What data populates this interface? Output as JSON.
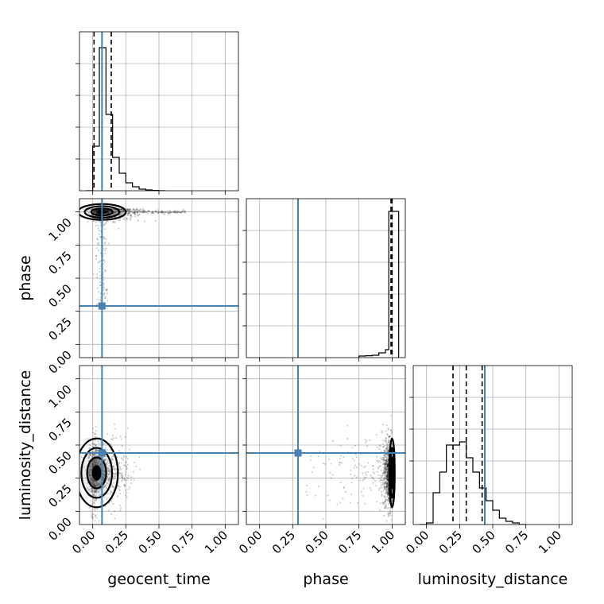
{
  "chart_data": {
    "type": "corner",
    "parameters": [
      {
        "name": "geocent_time",
        "range": [
          -0.1,
          1.1
        ],
        "ticks": [
          "0.00",
          "0.25",
          "0.50",
          "0.75",
          "1.00"
        ]
      },
      {
        "name": "phase",
        "range": [
          -0.1,
          1.1
        ],
        "ticks": [
          "0.00",
          "0.25",
          "0.50",
          "0.75",
          "1.00"
        ]
      },
      {
        "name": "luminosity_distance",
        "range": [
          -0.1,
          1.1
        ],
        "ticks": [
          "0.00",
          "0.25",
          "0.50",
          "0.75",
          "1.00"
        ]
      }
    ],
    "truths": {
      "geocent_time": 0.07,
      "phase": 0.29,
      "luminosity_distance": 0.44
    },
    "truth_color": "#4682b4",
    "histograms": [
      {
        "parameter": "geocent_time",
        "bin_edges": [
          -0.05,
          0.0,
          0.05,
          0.1,
          0.15,
          0.2,
          0.25,
          0.3,
          0.35,
          0.4,
          0.45,
          0.5,
          0.55
        ],
        "counts": [
          0.0,
          0.28,
          0.9,
          0.48,
          0.21,
          0.11,
          0.05,
          0.025,
          0.01,
          0.005,
          0.002,
          0.0
        ],
        "quantiles": [
          0.01,
          0.07,
          0.14
        ]
      },
      {
        "parameter": "phase",
        "bin_edges": [
          0.75,
          0.8,
          0.85,
          0.9,
          0.95,
          0.975,
          1.0,
          1.05
        ],
        "counts": [
          0.01,
          0.012,
          0.015,
          0.03,
          0.05,
          0.92,
          0.92
        ],
        "quantiles": [
          0.992,
          0.999,
          1.0
        ]
      },
      {
        "parameter": "luminosity_distance",
        "bin_edges": [
          -0.05,
          0.0,
          0.05,
          0.1,
          0.15,
          0.2,
          0.25,
          0.3,
          0.35,
          0.4,
          0.45,
          0.5,
          0.55,
          0.6,
          0.65,
          0.7,
          0.75
        ],
        "counts": [
          0.0,
          0.01,
          0.2,
          0.33,
          0.5,
          0.5,
          0.52,
          0.42,
          0.33,
          0.23,
          0.15,
          0.09,
          0.04,
          0.02,
          0.01,
          0.0
        ],
        "quantiles": [
          0.2,
          0.3,
          0.42
        ]
      }
    ],
    "scatter_2d": [
      {
        "x": "geocent_time",
        "y": "phase",
        "center": [
          0.07,
          1.0
        ],
        "spread": [
          0.09,
          0.03
        ],
        "tail_to_x": 0.7,
        "sparse_y_range": [
          0.3,
          1.0
        ]
      },
      {
        "x": "geocent_time",
        "y": "luminosity_distance",
        "center": [
          0.03,
          0.29
        ],
        "spread": [
          0.08,
          0.13
        ]
      },
      {
        "x": "phase",
        "y": "luminosity_distance",
        "center": [
          1.0,
          0.29
        ],
        "spread": [
          0.01,
          0.13
        ],
        "sparse_x_range": [
          0.2,
          1.0
        ]
      }
    ],
    "grid": true
  }
}
